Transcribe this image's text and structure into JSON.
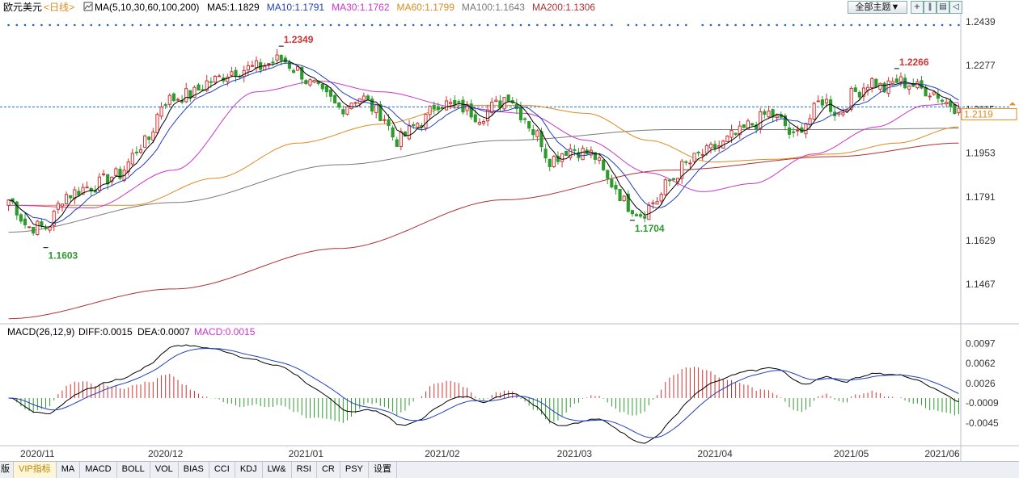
{
  "header": {
    "symbol": "欧元美元",
    "period": "<日线>",
    "ma_params": "MA(5,10,30,60,100,200)",
    "ma_values": [
      {
        "label": "MA5:1.1829",
        "color": "#000000"
      },
      {
        "label": "MA10:1.1791",
        "color": "#1f3fbf"
      },
      {
        "label": "MA30:1.1762",
        "color": "#cc33cc"
      },
      {
        "label": "MA60:1.1799",
        "color": "#e08a1e"
      },
      {
        "label": "MA100:1.1643",
        "color": "#7a7a7a"
      },
      {
        "label": "MA200:1.1306",
        "color": "#b33030"
      }
    ],
    "theme_button": "全部主题▼",
    "tool_icons": [
      "plus-icon",
      "pause-icon",
      "pages-icon",
      "back-icon"
    ]
  },
  "macd_header": {
    "params": "MACD(26,12,9)",
    "diff": "DIFF:0.0015",
    "dea": "DEA:0.0007",
    "macd": "MACD:0.0015",
    "macd_color": "#cc33cc"
  },
  "price_labels": {
    "high": "1.2349",
    "high2": "1.2266",
    "low": "1.1603",
    "low2": "1.1704",
    "current": "1.2119"
  },
  "tabs": [
    "版",
    "VIP指标",
    "MA",
    "MACD",
    "BOLL",
    "VOL",
    "BIAS",
    "CCI",
    "KDJ",
    "LW&",
    "RSI",
    "CR",
    "PSY",
    "设置"
  ],
  "active_tab": 1,
  "colors": {
    "up": "#d23232",
    "down": "#2e9a2e",
    "grid": "#3366aa"
  },
  "chart_data": [
    {
      "type": "candlestick",
      "title": "欧元美元 日线",
      "y_ticks": [
        "1.2439",
        "1.2277",
        "1.2115",
        "1.1953",
        "1.1791",
        "1.1629",
        "1.1467"
      ],
      "ylim": [
        1.133,
        1.246
      ],
      "x_ticks": [
        "2020/11",
        "2020/12",
        "2021/01",
        "2021/02",
        "2021/03",
        "2021/04",
        "2021/05",
        "2021/06"
      ],
      "annotations": [
        {
          "text": "1.2349",
          "value": 1.2349
        },
        {
          "text": "1.2266",
          "value": 1.2266
        },
        {
          "text": "1.1603",
          "value": 1.1603
        },
        {
          "text": "1.1704",
          "value": 1.1704
        }
      ],
      "last_price": 1.2119,
      "close_anchors": [
        [
          0,
          1.178
        ],
        [
          5,
          1.168
        ],
        [
          9,
          1.168
        ],
        [
          14,
          1.18
        ],
        [
          20,
          1.183
        ],
        [
          26,
          1.187
        ],
        [
          33,
          1.199
        ],
        [
          38,
          1.215
        ],
        [
          44,
          1.217
        ],
        [
          49,
          1.222
        ],
        [
          55,
          1.226
        ],
        [
          60,
          1.227
        ],
        [
          66,
          1.23
        ],
        [
          70,
          1.226
        ],
        [
          73,
          1.221
        ],
        [
          77,
          1.216
        ],
        [
          80,
          1.212
        ],
        [
          85,
          1.216
        ],
        [
          90,
          1.21
        ],
        [
          94,
          1.2
        ],
        [
          100,
          1.207
        ],
        [
          104,
          1.214
        ],
        [
          110,
          1.212
        ],
        [
          114,
          1.209
        ],
        [
          118,
          1.213
        ],
        [
          121,
          1.217
        ],
        [
          124,
          1.21
        ],
        [
          128,
          1.202
        ],
        [
          131,
          1.193
        ],
        [
          136,
          1.197
        ],
        [
          141,
          1.195
        ],
        [
          146,
          1.184
        ],
        [
          150,
          1.176
        ],
        [
          153,
          1.173
        ],
        [
          157,
          1.178
        ],
        [
          160,
          1.185
        ],
        [
          164,
          1.191
        ],
        [
          168,
          1.195
        ],
        [
          172,
          1.198
        ],
        [
          176,
          1.202
        ],
        [
          180,
          1.206
        ],
        [
          184,
          1.21
        ],
        [
          187,
          1.207
        ],
        [
          190,
          1.201
        ],
        [
          193,
          1.207
        ],
        [
          197,
          1.215
        ],
        [
          201,
          1.21
        ],
        [
          205,
          1.218
        ],
        [
          209,
          1.222
        ],
        [
          212,
          1.219
        ],
        [
          215,
          1.222
        ],
        [
          218,
          1.221
        ],
        [
          221,
          1.219
        ],
        [
          224,
          1.218
        ],
        [
          227,
          1.214
        ],
        [
          230,
          1.212
        ]
      ],
      "ma_anchors": {
        "MA30": [
          [
            0,
            1.176
          ],
          [
            20,
            1.175
          ],
          [
            40,
            1.189
          ],
          [
            60,
            1.218
          ],
          [
            75,
            1.222
          ],
          [
            90,
            1.218
          ],
          [
            110,
            1.212
          ],
          [
            125,
            1.21
          ],
          [
            140,
            1.2
          ],
          [
            155,
            1.188
          ],
          [
            168,
            1.181
          ],
          [
            180,
            1.184
          ],
          [
            195,
            1.195
          ],
          [
            210,
            1.205
          ],
          [
            222,
            1.213
          ],
          [
            230,
            1.214
          ]
        ],
        "MA60": [
          [
            0,
            1.176
          ],
          [
            30,
            1.176
          ],
          [
            50,
            1.186
          ],
          [
            70,
            1.199
          ],
          [
            90,
            1.206
          ],
          [
            110,
            1.213
          ],
          [
            125,
            1.213
          ],
          [
            140,
            1.21
          ],
          [
            155,
            1.2
          ],
          [
            170,
            1.192
          ],
          [
            185,
            1.193
          ],
          [
            200,
            1.195
          ],
          [
            215,
            1.199
          ],
          [
            230,
            1.205
          ]
        ],
        "MA100": [
          [
            0,
            1.166
          ],
          [
            40,
            1.177
          ],
          [
            80,
            1.191
          ],
          [
            120,
            1.2
          ],
          [
            160,
            1.204
          ],
          [
            200,
            1.204
          ],
          [
            230,
            1.2045
          ]
        ],
        "MA200": [
          [
            0,
            1.134
          ],
          [
            40,
            1.145
          ],
          [
            80,
            1.16
          ],
          [
            120,
            1.178
          ],
          [
            160,
            1.189
          ],
          [
            200,
            1.194
          ],
          [
            230,
            1.199
          ]
        ]
      }
    },
    {
      "type": "macd",
      "title": "MACD(26,12,9)",
      "y_ticks": [
        "0.0097",
        "0.0062",
        "0.0026",
        "-0.0009",
        "-0.0045"
      ],
      "ylim": [
        -0.0085,
        0.0108
      ],
      "DIFF": 0.0015,
      "DEA": 0.0007,
      "MACD": 0.0015
    }
  ]
}
